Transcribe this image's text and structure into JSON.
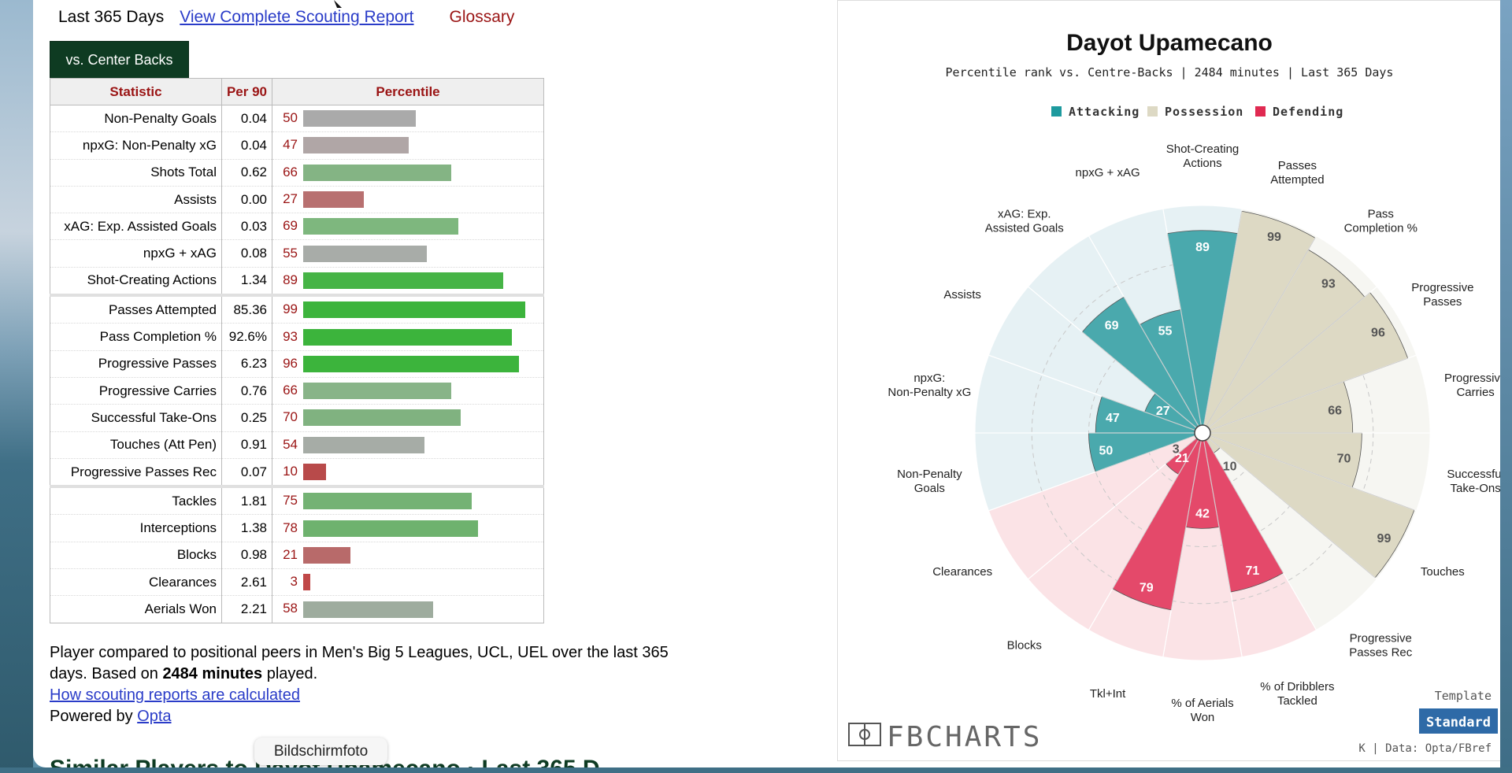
{
  "header": {
    "period": "Last 365 Days",
    "report_link": "View Complete Scouting Report",
    "glossary": "Glossary"
  },
  "tab_label": "vs. Center Backs",
  "table": {
    "headers": [
      "Statistic",
      "Per 90",
      "Percentile"
    ],
    "rows": [
      {
        "stat": "Non-Penalty Goals",
        "per90": "0.04",
        "pct": 50,
        "color": "#aaaaaa"
      },
      {
        "stat": "npxG: Non-Penalty xG",
        "per90": "0.04",
        "pct": 47,
        "color": "#b0a6a6"
      },
      {
        "stat": "Shots Total",
        "per90": "0.62",
        "pct": 66,
        "color": "#84b484"
      },
      {
        "stat": "Assists",
        "per90": "0.00",
        "pct": 27,
        "color": "#b87070"
      },
      {
        "stat": "xAG: Exp. Assisted Goals",
        "per90": "0.03",
        "pct": 69,
        "color": "#7eb77e"
      },
      {
        "stat": "npxG + xAG",
        "per90": "0.08",
        "pct": 55,
        "color": "#a8aca8"
      },
      {
        "stat": "Shot-Creating Actions",
        "per90": "1.34",
        "pct": 89,
        "color": "#46b446"
      },
      {
        "stat": "Passes Attempted",
        "per90": "85.36",
        "pct": 99,
        "color": "#3cb43c",
        "sep": true
      },
      {
        "stat": "Pass Completion %",
        "per90": "92.6%",
        "pct": 93,
        "color": "#3cb43c"
      },
      {
        "stat": "Progressive Passes",
        "per90": "6.23",
        "pct": 96,
        "color": "#3cb43c"
      },
      {
        "stat": "Progressive Carries",
        "per90": "0.76",
        "pct": 66,
        "color": "#88b488"
      },
      {
        "stat": "Successful Take-Ons",
        "per90": "0.25",
        "pct": 70,
        "color": "#80b280"
      },
      {
        "stat": "Touches (Att Pen)",
        "per90": "0.91",
        "pct": 54,
        "color": "#a6aca6"
      },
      {
        "stat": "Progressive Passes Rec",
        "per90": "0.07",
        "pct": 10,
        "color": "#b84a4a"
      },
      {
        "stat": "Tackles",
        "per90": "1.81",
        "pct": 75,
        "color": "#74b274",
        "sep": true
      },
      {
        "stat": "Interceptions",
        "per90": "1.38",
        "pct": 78,
        "color": "#6eb26e"
      },
      {
        "stat": "Blocks",
        "per90": "0.98",
        "pct": 21,
        "color": "#b86a6a"
      },
      {
        "stat": "Clearances",
        "per90": "2.61",
        "pct": 3,
        "color": "#c04848"
      },
      {
        "stat": "Aerials Won",
        "per90": "2.21",
        "pct": 58,
        "color": "#9eac9e"
      }
    ]
  },
  "note": {
    "text_a": "Player compared to positional peers in Men's Big 5 Leagues, UCL, UEL over the last 365 days. Based on ",
    "minutes": "2484 minutes",
    "text_b": " played.",
    "how_link": "How scouting reports are calculated",
    "powered": "Powered by ",
    "opta": "Opta"
  },
  "tooltip": "Bildschirmfoto",
  "similar_heading": "Similar Players to Dayot Upamecano · Last 365 D",
  "chart_data": {
    "type": "polar-bar",
    "title": "Dayot Upamecano",
    "subtitle": "Percentile rank vs. Centre-Backs | 2484 minutes | Last 365 Days",
    "legend": [
      {
        "name": "Attacking",
        "color": "#1d9a9e"
      },
      {
        "name": "Possession",
        "color": "#ddd9c4"
      },
      {
        "name": "Defending",
        "color": "#e02a51"
      }
    ],
    "legend_position": "top",
    "rlim": [
      0,
      100
    ],
    "categories": [
      "Shot-Creating Actions",
      "Passes Attempted",
      "Pass Completion %",
      "Progressive Passes",
      "Progressive Carries",
      "Successful Take-Ons",
      "Touches",
      "Progressive Passes Rec",
      "% of Dribblers Tackled",
      "% of Aerials Won",
      "Tkl+Int",
      "Blocks",
      "Clearances",
      "Non-Penalty Goals",
      "npxG: Non-Penalty xG",
      "Assists",
      "xAG: Exp. Assisted Goals",
      "npxG + xAG"
    ],
    "values": [
      89,
      99,
      93,
      96,
      66,
      70,
      99,
      10,
      71,
      42,
      79,
      21,
      3,
      50,
      47,
      27,
      69,
      55
    ],
    "groups": [
      "Attacking",
      "Possession",
      "Possession",
      "Possession",
      "Possession",
      "Possession",
      "Possession",
      "Possession",
      "Defending",
      "Defending",
      "Defending",
      "Defending",
      "Defending",
      "Attacking",
      "Attacking",
      "Attacking",
      "Attacking",
      "Attacking"
    ],
    "group_colors": {
      "Attacking": "#4aa9ad",
      "Possession": "#ddd9c4",
      "Defending": "#e4496a"
    },
    "group_bg": {
      "Attacking": "#e6f1f4",
      "Possession": "#f6f6f2",
      "Defending": "#fbe3e6"
    },
    "brand": "FBCHARTS",
    "template_label": "Template",
    "template_button": "Standard",
    "source": "K | Data: Opta/FBref"
  }
}
